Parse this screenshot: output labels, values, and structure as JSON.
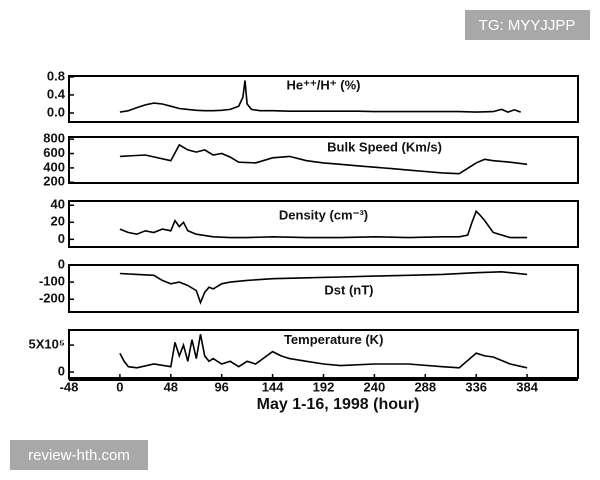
{
  "chart_data": [
    {
      "type": "line",
      "title": "He⁺⁺/H⁺ (%)",
      "color": "#000",
      "x": [
        0,
        8,
        16,
        24,
        32,
        40,
        48,
        56,
        64,
        72,
        80,
        88,
        96,
        104,
        112,
        116,
        118,
        120,
        124,
        132,
        144,
        160,
        176,
        192,
        208,
        224,
        240,
        256,
        272,
        288,
        304,
        320,
        336,
        352,
        360,
        366,
        372,
        378
      ],
      "values": [
        0.02,
        0.05,
        0.12,
        0.18,
        0.22,
        0.2,
        0.15,
        0.1,
        0.08,
        0.06,
        0.05,
        0.05,
        0.06,
        0.08,
        0.15,
        0.35,
        0.72,
        0.2,
        0.08,
        0.05,
        0.05,
        0.04,
        0.04,
        0.04,
        0.04,
        0.04,
        0.03,
        0.03,
        0.03,
        0.03,
        0.03,
        0.03,
        0.02,
        0.03,
        0.08,
        0.02,
        0.07,
        0.02
      ],
      "xlim": [
        -48,
        432
      ],
      "ylim": [
        -0.2,
        0.82
      ],
      "yticks": [
        0.8,
        0.4,
        {
          "value": 0,
          "label": "0.0"
        }
      ]
    },
    {
      "type": "line",
      "title": "Bulk Speed (Km/s)",
      "color": "#000",
      "x": [
        0,
        24,
        48,
        56,
        64,
        72,
        80,
        88,
        96,
        104,
        112,
        128,
        144,
        160,
        176,
        192,
        208,
        224,
        240,
        256,
        272,
        288,
        304,
        320,
        336,
        344,
        352,
        368,
        384
      ],
      "values": [
        560,
        580,
        500,
        720,
        650,
        620,
        650,
        580,
        600,
        550,
        480,
        470,
        540,
        560,
        500,
        470,
        450,
        430,
        410,
        390,
        370,
        350,
        330,
        320,
        470,
        520,
        500,
        480,
        450
      ],
      "xlim": [
        -48,
        432
      ],
      "ylim": [
        190,
        830
      ],
      "yticks": [
        800,
        600,
        400,
        200
      ]
    },
    {
      "type": "line",
      "title": "Density (cm⁻³)",
      "color": "#000",
      "x": [
        0,
        8,
        16,
        24,
        32,
        40,
        48,
        52,
        56,
        60,
        64,
        72,
        88,
        104,
        120,
        144,
        176,
        208,
        240,
        272,
        304,
        320,
        328,
        332,
        336,
        340,
        344,
        352,
        368,
        384
      ],
      "values": [
        12,
        8,
        6,
        10,
        8,
        12,
        10,
        22,
        15,
        20,
        10,
        6,
        3,
        2,
        2,
        3,
        2,
        2,
        3,
        2,
        3,
        3,
        5,
        20,
        33,
        28,
        22,
        8,
        2,
        2
      ],
      "xlim": [
        -48,
        432
      ],
      "ylim": [
        -9,
        45
      ],
      "yticks": [
        40,
        20,
        0
      ]
    },
    {
      "type": "line",
      "title": "Dst (nT)",
      "color": "#000",
      "x": [
        0,
        16,
        32,
        40,
        48,
        56,
        64,
        72,
        76,
        80,
        84,
        88,
        96,
        104,
        120,
        144,
        176,
        208,
        240,
        272,
        304,
        336,
        360,
        384
      ],
      "values": [
        -50,
        -55,
        -60,
        -90,
        -110,
        -100,
        -120,
        -150,
        -220,
        -160,
        -130,
        -140,
        -110,
        -100,
        -90,
        -80,
        -75,
        -70,
        -65,
        -60,
        -55,
        -45,
        -40,
        -55
      ],
      "xlim": [
        -48,
        432
      ],
      "ylim": [
        -275,
        0
      ],
      "yticks": [
        0,
        -100,
        -200
      ]
    },
    {
      "type": "line",
      "title": "Temperature (K)",
      "color": "#000",
      "x": [
        0,
        4,
        8,
        16,
        32,
        48,
        52,
        56,
        60,
        64,
        68,
        72,
        76,
        80,
        84,
        88,
        96,
        104,
        112,
        120,
        128,
        144,
        152,
        160,
        176,
        192,
        208,
        240,
        272,
        304,
        320,
        336,
        344,
        352,
        368,
        384
      ],
      "values": [
        350000,
        200000,
        100000,
        80000,
        150000,
        100000,
        550000,
        300000,
        500000,
        200000,
        600000,
        250000,
        700000,
        300000,
        200000,
        250000,
        150000,
        200000,
        100000,
        200000,
        150000,
        380000,
        300000,
        250000,
        200000,
        150000,
        120000,
        150000,
        150000,
        100000,
        80000,
        350000,
        300000,
        280000,
        150000,
        80000
      ],
      "xlim": [
        -48,
        432
      ],
      "ylim": [
        -110000,
        780000
      ],
      "yticks": [
        {
          "value": 500000,
          "label": "5X10⁵"
        },
        0
      ],
      "xticks": [
        -48,
        0,
        48,
        96,
        144,
        192,
        240,
        288,
        336,
        384
      ],
      "xlabel": "May 1-16, 1998 (hour)"
    }
  ],
  "watermarks": [
    "TG: MYYJJPP",
    "review-hth.com"
  ]
}
